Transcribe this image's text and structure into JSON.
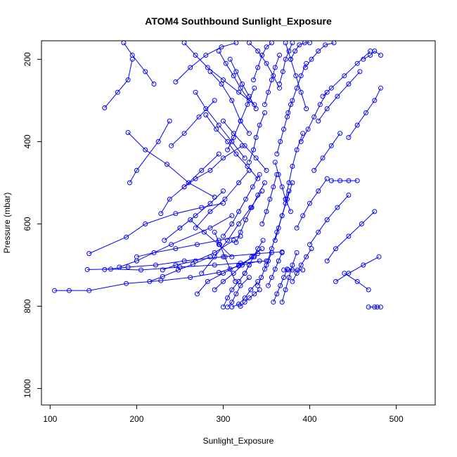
{
  "chart_data": {
    "type": "line",
    "title": "ATOM4 Southbound Sunlight_Exposure",
    "xlabel": "Sunlight_Exposure",
    "ylabel": "Pressure (mbar)",
    "xlim": [
      90,
      545
    ],
    "ylim": [
      1040,
      155
    ],
    "y_reversed": true,
    "x_ticks": [
      100,
      200,
      300,
      400,
      500
    ],
    "y_ticks": [
      200,
      400,
      600,
      800,
      1000
    ],
    "series_color": "#0000ff",
    "marker": "open-circle",
    "grid": false,
    "series": [
      {
        "x": [
          105,
          122,
          145,
          188,
          228,
          262,
          295,
          318,
          342
        ],
        "y": [
          762,
          762,
          762,
          745,
          738,
          730,
          718,
          702,
          690
        ]
      },
      {
        "x": [
          143,
          170,
          205,
          250,
          290,
          320,
          350
        ],
        "y": [
          711,
          710,
          712,
          705,
          700,
          695,
          690
        ]
      },
      {
        "x": [
          145,
          188,
          210,
          245,
          275,
          300
        ],
        "y": [
          672,
          632,
          600,
          575,
          560,
          550
        ]
      },
      {
        "x": [
          163,
          190,
          222,
          255,
          300,
          340,
          368
        ],
        "y": [
          711,
          705,
          700,
          690,
          680,
          672,
          668
        ]
      },
      {
        "x": [
          180,
          200,
          240,
          285,
          310
        ],
        "y": [
          705,
          690,
          650,
          610,
          580
        ]
      },
      {
        "x": [
          163,
          178,
          190,
          195
        ],
        "y": [
          318,
          280,
          250,
          200
        ]
      },
      {
        "x": [
          185,
          195,
          210,
          220
        ],
        "y": [
          160,
          190,
          230,
          260
        ]
      },
      {
        "x": [
          192,
          200,
          225,
          238
        ],
        "y": [
          500,
          470,
          400,
          350
        ]
      },
      {
        "x": [
          190,
          210,
          235,
          260,
          290
        ],
        "y": [
          378,
          420,
          455,
          500,
          535
        ]
      },
      {
        "x": [
          215,
          230,
          248,
          265,
          285
        ],
        "y": [
          740,
          728,
          712,
          698,
          680
        ]
      },
      {
        "x": [
          230,
          245,
          268,
          290,
          312
        ],
        "y": [
          712,
          700,
          690,
          670,
          640
        ]
      },
      {
        "x": [
          228,
          238,
          255,
          275,
          295
        ],
        "y": [
          575,
          540,
          510,
          470,
          430
        ]
      },
      {
        "x": [
          240,
          255,
          272,
          290
        ],
        "y": [
          410,
          380,
          340,
          300
        ]
      },
      {
        "x": [
          245,
          262,
          280,
          298,
          315
        ],
        "y": [
          255,
          220,
          190,
          170,
          160
        ]
      },
      {
        "x": [
          270,
          282,
          300,
          318,
          336
        ],
        "y": [
          770,
          740,
          720,
          700,
          680
        ]
      },
      {
        "x": [
          255,
          268,
          285,
          300,
          322
        ],
        "y": [
          510,
          490,
          470,
          440,
          410
        ]
      },
      {
        "x": [
          262,
          278,
          295,
          310
        ],
        "y": [
          590,
          620,
          650,
          680
        ]
      },
      {
        "x": [
          268,
          285,
          302,
          318,
          330
        ],
        "y": [
          610,
          570,
          540,
          500,
          470
        ]
      },
      {
        "x": [
          275,
          290,
          305,
          318,
          332,
          345
        ],
        "y": [
          720,
          680,
          640,
          600,
          560,
          520
        ]
      },
      {
        "x": [
          280,
          292,
          305,
          315,
          328,
          340
        ],
        "y": [
          335,
          370,
          400,
          430,
          460,
          490
        ]
      },
      {
        "x": [
          285,
          298,
          310,
          320,
          330
        ],
        "y": [
          230,
          260,
          300,
          350,
          380
        ]
      },
      {
        "x": [
          290,
          300,
          312,
          322,
          333,
          345
        ],
        "y": [
          760,
          740,
          720,
          700,
          680,
          660
        ]
      },
      {
        "x": [
          295,
          303,
          312,
          320,
          330
        ],
        "y": [
          180,
          210,
          240,
          270,
          300
        ]
      },
      {
        "x": [
          300,
          305,
          310,
          318,
          325,
          330
        ],
        "y": [
          802,
          780,
          760,
          740,
          720,
          700
        ]
      },
      {
        "x": [
          305,
          310,
          315,
          320,
          330
        ],
        "y": [
          802,
          790,
          770,
          750,
          730
        ]
      },
      {
        "x": [
          310,
          318,
          325,
          332,
          340
        ],
        "y": [
          802,
          795,
          780,
          760,
          740
        ]
      },
      {
        "x": [
          300,
          310,
          318,
          326,
          334,
          342
        ],
        "y": [
          630,
          600,
          570,
          540,
          510,
          480
        ]
      },
      {
        "x": [
          305,
          312,
          320,
          328,
          336
        ],
        "y": [
          420,
          390,
          350,
          310,
          270
        ]
      },
      {
        "x": [
          308,
          315,
          322,
          330,
          338
        ],
        "y": [
          200,
          230,
          260,
          290,
          320
        ]
      },
      {
        "x": [
          315,
          320,
          326,
          333,
          340,
          348
        ],
        "y": [
          645,
          620,
          590,
          560,
          530,
          500
        ]
      },
      {
        "x": [
          320,
          325,
          330,
          336,
          342
        ],
        "y": [
          800,
          790,
          780,
          770,
          760
        ]
      },
      {
        "x": [
          325,
          330,
          335,
          340,
          346
        ],
        "y": [
          720,
          700,
          680,
          660,
          640
        ]
      },
      {
        "x": [
          330,
          335,
          338,
          342,
          348
        ],
        "y": [
          450,
          420,
          390,
          360,
          330
        ]
      },
      {
        "x": [
          335,
          340,
          345,
          350,
          356
        ],
        "y": [
          250,
          220,
          190,
          170,
          160
        ]
      },
      {
        "x": [
          340,
          344,
          348,
          352,
          356
        ],
        "y": [
          750,
          730,
          710,
          690,
          670
        ]
      },
      {
        "x": [
          345,
          350,
          354,
          358,
          362
        ],
        "y": [
          600,
          570,
          540,
          510,
          480
        ]
      },
      {
        "x": [
          348,
          352,
          356,
          360,
          365
        ],
        "y": [
          310,
          280,
          250,
          220,
          190
        ]
      },
      {
        "x": [
          352,
          356,
          360,
          364,
          368
        ],
        "y": [
          750,
          730,
          710,
          690,
          670
        ]
      },
      {
        "x": [
          358,
          362,
          366,
          370,
          374
        ],
        "y": [
          790,
          770,
          750,
          730,
          710
        ]
      },
      {
        "x": [
          360,
          364,
          368,
          372,
          376
        ],
        "y": [
          640,
          610,
          580,
          550,
          520
        ]
      },
      {
        "x": [
          362,
          366,
          370,
          374,
          378
        ],
        "y": [
          430,
          400,
          370,
          340,
          310
        ]
      },
      {
        "x": [
          365,
          369,
          372,
          376,
          380
        ],
        "y": [
          260,
          230,
          200,
          180,
          160
        ]
      },
      {
        "x": [
          368,
          372,
          376,
          380,
          385
        ],
        "y": [
          790,
          760,
          730,
          700,
          670
        ]
      },
      {
        "x": [
          370,
          375,
          380,
          386,
          392
        ],
        "y": [
          712,
          712,
          712,
          712,
          712
        ]
      },
      {
        "x": [
          372,
          376,
          380,
          385,
          392
        ],
        "y": [
          540,
          500,
          460,
          420,
          380
        ]
      },
      {
        "x": [
          375,
          380,
          385,
          390,
          396
        ],
        "y": [
          330,
          300,
          270,
          240,
          210
        ]
      },
      {
        "x": [
          378,
          383,
          388,
          394,
          400
        ],
        "y": [
          200,
          180,
          165,
          160,
          160
        ]
      },
      {
        "x": [
          380,
          385,
          390,
          396,
          402
        ],
        "y": [
          740,
          720,
          700,
          680,
          660
        ]
      },
      {
        "x": [
          385,
          392,
          400,
          410,
          420
        ],
        "y": [
          610,
          580,
          550,
          520,
          490
        ]
      },
      {
        "x": [
          390,
          398,
          405,
          412,
          420
        ],
        "y": [
          400,
          370,
          340,
          310,
          280
        ]
      },
      {
        "x": [
          395,
          402,
          410,
          418,
          428
        ],
        "y": [
          220,
          200,
          180,
          165,
          160
        ]
      },
      {
        "x": [
          400,
          410,
          420,
          432,
          445
        ],
        "y": [
          650,
          620,
          590,
          560,
          530
        ]
      },
      {
        "x": [
          405,
          415,
          425,
          435
        ],
        "y": [
          470,
          440,
          410,
          380
        ]
      },
      {
        "x": [
          410,
          420,
          432,
          445,
          458
        ],
        "y": [
          350,
          320,
          290,
          260,
          230
        ]
      },
      {
        "x": [
          415,
          425,
          440,
          455,
          470
        ],
        "y": [
          290,
          270,
          240,
          210,
          180
        ]
      },
      {
        "x": [
          420,
          430,
          445,
          460,
          475
        ],
        "y": [
          690,
          660,
          630,
          600,
          570
        ]
      },
      {
        "x": [
          425,
          435,
          445,
          455
        ],
        "y": [
          495,
          495,
          495,
          495
        ]
      },
      {
        "x": [
          430,
          445,
          462,
          480
        ],
        "y": [
          740,
          720,
          700,
          680
        ]
      },
      {
        "x": [
          440,
          455,
          468
        ],
        "y": [
          720,
          740,
          760
        ]
      },
      {
        "x": [
          468,
          475,
          478,
          482
        ],
        "y": [
          802,
          802,
          802,
          802
        ]
      },
      {
        "x": [
          462,
          470,
          475,
          482
        ],
        "y": [
          200,
          190,
          180,
          190
        ]
      },
      {
        "x": [
          445,
          455,
          465,
          475,
          482
        ],
        "y": [
          390,
          360,
          330,
          300,
          270
        ]
      },
      {
        "x": [
          255,
          268,
          282,
          300,
          318,
          336
        ],
        "y": [
          160,
          190,
          220,
          250,
          280,
          310
        ]
      },
      {
        "x": [
          268,
          280,
          295,
          310,
          325
        ],
        "y": [
          280,
          320,
          360,
          400,
          440
        ]
      },
      {
        "x": [
          232,
          250,
          268,
          285,
          300
        ],
        "y": [
          640,
          610,
          580,
          550,
          520
        ]
      },
      {
        "x": [
          200,
          220,
          245,
          270,
          295,
          320
        ],
        "y": [
          680,
          670,
          660,
          650,
          640,
          630
        ]
      },
      {
        "x": [
          330,
          340,
          350,
          358,
          365
        ],
        "y": [
          160,
          180,
          210,
          240,
          270
        ]
      },
      {
        "x": [
          350,
          356,
          362,
          368,
          374,
          380
        ],
        "y": [
          700,
          660,
          620,
          580,
          540,
          500
        ]
      },
      {
        "x": [
          360,
          364,
          368,
          372,
          378
        ],
        "y": [
          450,
          480,
          510,
          540,
          570
        ]
      },
      {
        "x": [
          372,
          378,
          384,
          390,
          396
        ],
        "y": [
          160,
          200,
          240,
          280,
          320
        ]
      },
      {
        "x": [
          300,
          312,
          325,
          338,
          350
        ],
        "y": [
          350,
          380,
          410,
          440,
          470
        ]
      },
      {
        "x": [
          290,
          296,
          302,
          308,
          314
        ],
        "y": [
          620,
          650,
          680,
          710,
          740
        ]
      }
    ]
  }
}
